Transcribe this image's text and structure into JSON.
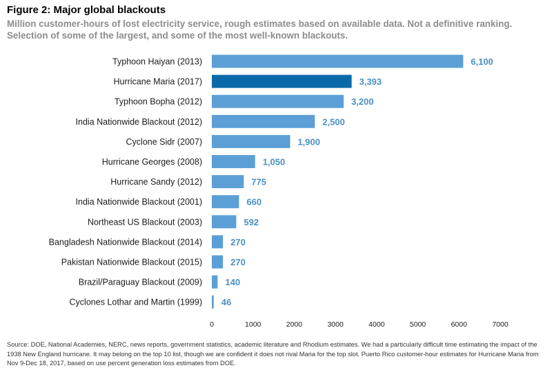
{
  "title": "Figure 2: Major global blackouts",
  "subtitle": "Million customer-hours of lost electricity service, rough estimates based on available data. Not a definitive ranking. Selection of some of the largest, and some of the most well-known blackouts.",
  "source": "Source: DOE, National Academies, NERC, news reports, government statistics, academic literature and Rhodium estimates. We had a particularly difficult time estimating the impact of the 1938 New England hurricane. It may belong on the top 10 list, though we are confident it does not rival Maria for the top slot. Puerto Rico customer-hour estimates for Hurricane Maria from Nov 9-Dec 18, 2017, based on use percent generation loss estimates from DOE.",
  "colors": {
    "bar": "#5b9fd6",
    "highlight": "#0a6aa8",
    "value_label": "#4a90c4"
  },
  "chart_data": {
    "type": "bar",
    "orientation": "horizontal",
    "categories": [
      "Typhoon Haiyan (2013)",
      "Hurricane Maria (2017)",
      "Typhoon Bopha (2012)",
      "India Nationwide Blackout (2012)",
      "Cyclone Sidr (2007)",
      "Hurricane Georges (2008)",
      "Hurricane Sandy (2012)",
      "India Nationwide Blackout (2001)",
      "Northeast US Blackout (2003)",
      "Bangladesh Nationwide Blackout (2014)",
      "Pakistan Nationwide Blackout (2015)",
      "Brazil/Paraguay Blackout (2009)",
      "Cyclones Lothar and Martin (1999)"
    ],
    "values": [
      6100,
      3393,
      3200,
      2500,
      1900,
      1050,
      775,
      660,
      592,
      270,
      270,
      140,
      46
    ],
    "value_labels": [
      "6,100",
      "3,393",
      "3,200",
      "2,500",
      "1,900",
      "1,050",
      "775",
      "660",
      "592",
      "270",
      "270",
      "140",
      "46"
    ],
    "highlight": "Hurricane Maria (2017)",
    "xlim": [
      0,
      7000
    ],
    "xticks": [
      "0",
      "1000",
      "2000",
      "3000",
      "4000",
      "5000",
      "6000",
      "7000"
    ],
    "grid": false
  }
}
